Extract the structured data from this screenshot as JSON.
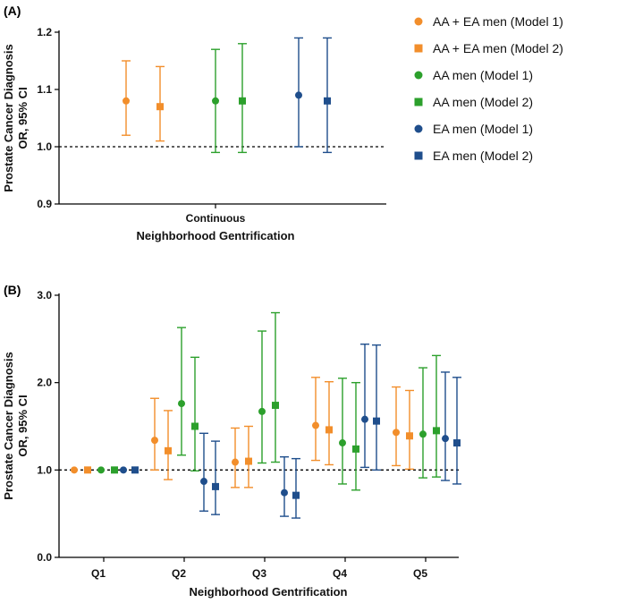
{
  "chart_data": [
    {
      "panel_label": "(A)",
      "type": "scatter",
      "subtype": "error-bar",
      "ylabel": [
        "Prostate Cancer Diagnosis",
        "OR, 95% CI"
      ],
      "xlabel": "Neighborhood Gentrification",
      "categories": [
        "Continuous"
      ],
      "ylim": [
        0.9,
        1.2
      ],
      "yticks": [
        0.9,
        1.0,
        1.1,
        1.2
      ],
      "ytick_labels": [
        "0.9",
        "1.0",
        "1.1",
        "1.2"
      ],
      "reference_line": 1.0,
      "series": [
        {
          "name": "AA + EA men (Model 1)",
          "values": [
            {
              "or": 1.08,
              "lo": 1.02,
              "hi": 1.15
            }
          ]
        },
        {
          "name": "AA + EA men (Model 2)",
          "values": [
            {
              "or": 1.07,
              "lo": 1.01,
              "hi": 1.14
            }
          ]
        },
        {
          "name": "AA men (Model 1)",
          "values": [
            {
              "or": 1.08,
              "lo": 0.99,
              "hi": 1.17
            }
          ]
        },
        {
          "name": "AA men (Model 2)",
          "values": [
            {
              "or": 1.08,
              "lo": 0.99,
              "hi": 1.18
            }
          ]
        },
        {
          "name": "EA men (Model 1)",
          "values": [
            {
              "or": 1.09,
              "lo": 1.0,
              "hi": 1.19
            }
          ]
        },
        {
          "name": "EA men (Model 2)",
          "values": [
            {
              "or": 1.08,
              "lo": 0.99,
              "hi": 1.19
            }
          ]
        }
      ]
    },
    {
      "panel_label": "(B)",
      "type": "scatter",
      "subtype": "error-bar",
      "ylabel": [
        "Prostate Cancer Diagnosis",
        "OR, 95% CI"
      ],
      "xlabel": "Neighborhood Gentrification",
      "categories": [
        "Q1",
        "Q2",
        "Q3",
        "Q4",
        "Q5"
      ],
      "ylim": [
        0.0,
        3.0
      ],
      "yticks": [
        0.0,
        1.0,
        2.0,
        3.0
      ],
      "ytick_labels": [
        "0.0",
        "1.0",
        "2.0",
        "3.0"
      ],
      "reference_line": 1.0,
      "series": [
        {
          "name": "AA + EA men (Model 1)",
          "values": [
            {
              "or": 1.0,
              "lo": 1.0,
              "hi": 1.0
            },
            {
              "or": 1.34,
              "lo": 1.0,
              "hi": 1.82
            },
            {
              "or": 1.09,
              "lo": 0.8,
              "hi": 1.48
            },
            {
              "or": 1.51,
              "lo": 1.11,
              "hi": 2.06
            },
            {
              "or": 1.43,
              "lo": 1.05,
              "hi": 1.95
            }
          ]
        },
        {
          "name": "AA + EA men (Model 2)",
          "values": [
            {
              "or": 1.0,
              "lo": 1.0,
              "hi": 1.0
            },
            {
              "or": 1.22,
              "lo": 0.89,
              "hi": 1.68
            },
            {
              "or": 1.1,
              "lo": 0.8,
              "hi": 1.5
            },
            {
              "or": 1.46,
              "lo": 1.06,
              "hi": 2.01
            },
            {
              "or": 1.39,
              "lo": 1.01,
              "hi": 1.91
            }
          ]
        },
        {
          "name": "AA men (Model 1)",
          "values": [
            {
              "or": 1.0,
              "lo": 1.0,
              "hi": 1.0
            },
            {
              "or": 1.76,
              "lo": 1.17,
              "hi": 2.63
            },
            {
              "or": 1.67,
              "lo": 1.08,
              "hi": 2.59
            },
            {
              "or": 1.31,
              "lo": 0.84,
              "hi": 2.05
            },
            {
              "or": 1.41,
              "lo": 0.91,
              "hi": 2.17
            }
          ]
        },
        {
          "name": "AA men (Model 2)",
          "values": [
            {
              "or": 1.0,
              "lo": 1.0,
              "hi": 1.0
            },
            {
              "or": 1.5,
              "lo": 0.99,
              "hi": 2.29
            },
            {
              "or": 1.74,
              "lo": 1.09,
              "hi": 2.8
            },
            {
              "or": 1.24,
              "lo": 0.77,
              "hi": 2.0
            },
            {
              "or": 1.45,
              "lo": 0.92,
              "hi": 2.31
            }
          ]
        },
        {
          "name": "EA men (Model 1)",
          "values": [
            {
              "or": 1.0,
              "lo": 1.0,
              "hi": 1.0
            },
            {
              "or": 0.87,
              "lo": 0.53,
              "hi": 1.42
            },
            {
              "or": 0.74,
              "lo": 0.47,
              "hi": 1.15
            },
            {
              "or": 1.58,
              "lo": 1.03,
              "hi": 2.44
            },
            {
              "or": 1.36,
              "lo": 0.88,
              "hi": 2.12
            }
          ]
        },
        {
          "name": "EA men (Model 2)",
          "values": [
            {
              "or": 1.0,
              "lo": 1.0,
              "hi": 1.0
            },
            {
              "or": 0.81,
              "lo": 0.49,
              "hi": 1.33
            },
            {
              "or": 0.71,
              "lo": 0.45,
              "hi": 1.13
            },
            {
              "or": 1.56,
              "lo": 1.0,
              "hi": 2.43
            },
            {
              "or": 1.31,
              "lo": 0.84,
              "hi": 2.06
            }
          ]
        }
      ]
    }
  ],
  "legend": {
    "items": [
      {
        "label": "AA + EA men (Model 1)",
        "color": "#F28E2B",
        "marker": "circle"
      },
      {
        "label": "AA + EA men (Model 2)",
        "color": "#F28E2B",
        "marker": "square"
      },
      {
        "label": "AA men (Model 1)",
        "color": "#2CA02C",
        "marker": "circle"
      },
      {
        "label": "AA men (Model 2)",
        "color": "#2CA02C",
        "marker": "square"
      },
      {
        "label": "EA men (Model 1)",
        "color": "#1F4E8C",
        "marker": "circle"
      },
      {
        "label": "EA men (Model 2)",
        "color": "#1F4E8C",
        "marker": "square"
      }
    ]
  }
}
